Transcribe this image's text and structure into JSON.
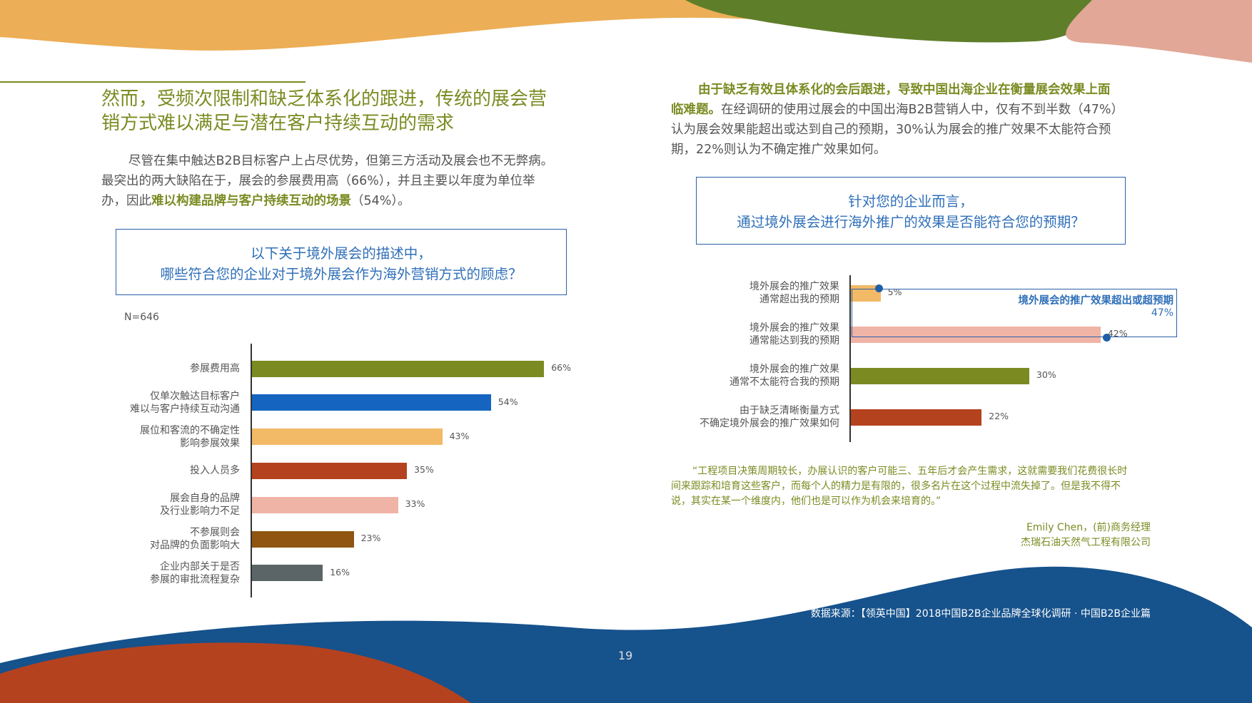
{
  "colors": {
    "accent_green": "#7b8b22",
    "accent_blue": "#2f6fb8",
    "bg_orange": "#ecae56",
    "bg_dark_green": "#5e7e2a",
    "bg_pink": "#e2a796",
    "bg_navy": "#16528c",
    "bg_rust": "#b5421e"
  },
  "left": {
    "headline_line1": "然而，受频次限制和缺乏体系化的跟进，传统的展会营",
    "headline_line2": "销方式难以满足与潜在客户持续互动的需求",
    "para_line1": "尽管在集中触达B2B目标客户上占尽优势，但第三方活动及展会也不无弊病。",
    "para_line2": "最突出的两大缺陷在于，展会的参展费用高（66%），并且主要以年度为单位举",
    "para_line3_pre": "办，因此",
    "para_line3_hl": "难以构建品牌与客户持续互动的场景",
    "para_line3_post": "（54%）。",
    "question_line1": "以下关于境外展会的描述中，",
    "question_line2": "哪些符合您的企业对于境外展会作为海外营销方式的顾虑？",
    "n_label": "N=646"
  },
  "right": {
    "para_line1_hl": "由于缺乏有效且体系化的会后跟进，导致中国出海企业在衡量展会效果上面",
    "para_line2_hl": "临难题。",
    "para_line2_rest": "在经调研的使用过展会的中国出海B2B营销人中，仅有不到半数（47%）",
    "para_line3": "认为展会效果能超出或达到自己的预期，30%认为展会的推广效果不太能符合预",
    "para_line4": "期，22%则认为不确定推广效果如何。",
    "question_line1": "针对您的企业而言，",
    "question_line2": "通过境外展会进行海外推广的效果是否能符合您的预期？",
    "callout_title": "境外展会的推广效果超出或超预期",
    "callout_value": "47%",
    "quote_line1": "“工程项目决策周期较长，办展认识的客户可能三、五年后才会产生需求，这就需要我们花费很长时",
    "quote_line2": "间来跟踪和培育这些客户，而每个人的精力是有限的，很多名片在这个过程中流失掉了。但是我不得不",
    "quote_line3": "说，其实在某一个维度内，他们也是可以作为机会来培育的。”",
    "attrib_line1": "Emily Chen，(前)商务经理",
    "attrib_line2": "杰瑞石油天然气工程有限公司"
  },
  "footer": {
    "source": "数据来源：【领英中国】2018中国B2B企业品牌全球化调研 · 中国B2B企业篇",
    "page_number": "19"
  },
  "chart_data": [
    {
      "type": "bar",
      "orientation": "horizontal",
      "n": "N=646",
      "categories": [
        [
          "参展费用高"
        ],
        [
          "仅单次触达目标客户",
          "难以与客户持续互动沟通"
        ],
        [
          "展位和客流的不确定性",
          "影响参展效果"
        ],
        [
          "投入人员多"
        ],
        [
          "展会自身的品牌",
          "及行业影响力不足"
        ],
        [
          "不参展则会",
          "对品牌的负面影响大"
        ],
        [
          "企业内部关于是否",
          "参展的审批流程复杂"
        ]
      ],
      "values": [
        66,
        54,
        43,
        35,
        33,
        23,
        16
      ],
      "value_labels": [
        "66%",
        "54%",
        "43%",
        "35%",
        "33%",
        "23%",
        "16%"
      ],
      "bar_colors": [
        "#7b8b22",
        "#1565c0",
        "#f2b966",
        "#b5421e",
        "#f0b4a6",
        "#8f5511",
        "#5b6567"
      ],
      "xlim": [
        0,
        100
      ],
      "unit": "%"
    },
    {
      "type": "bar",
      "orientation": "horizontal",
      "categories": [
        [
          "境外展会的推广效果",
          "通常超出我的预期"
        ],
        [
          "境外展会的推广效果",
          "通常能达到我的预期"
        ],
        [
          "境外展会的推广效果",
          "通常不太能符合我的预期"
        ],
        [
          "由于缺乏清晰衡量方式",
          "不确定境外展会的推广效果如何"
        ]
      ],
      "values": [
        5,
        42,
        30,
        22
      ],
      "value_labels": [
        "5%",
        "42%",
        "30%",
        "22%"
      ],
      "bar_colors": [
        "#f2b966",
        "#f0b4a6",
        "#7b8b22",
        "#b5421e"
      ],
      "xlim": [
        0,
        100
      ],
      "unit": "%",
      "annotation": {
        "text": "境外展会的推广效果超出或超预期",
        "value": "47%"
      }
    }
  ]
}
